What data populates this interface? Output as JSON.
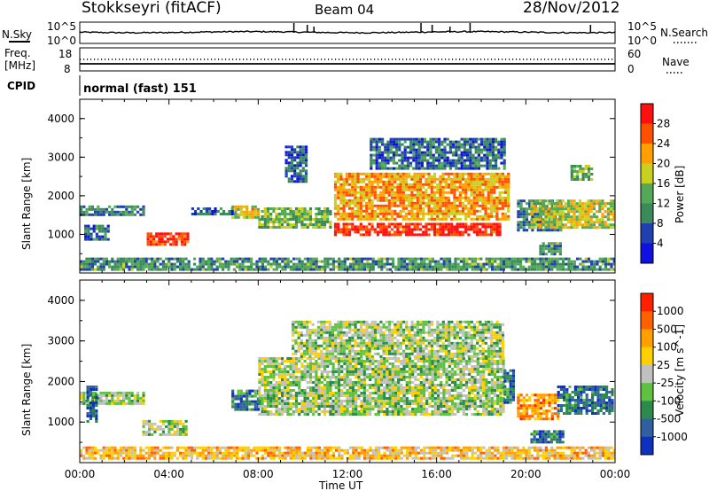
{
  "header": {
    "station": "Stokkseyri (fitACF)",
    "beam": "Beam 04",
    "date": "28/Nov/2012"
  },
  "noise_panel": {
    "left_label": "N.Sky",
    "right_label": "N.Search",
    "left_ticks": [
      "10^5",
      "10^0"
    ],
    "right_ticks": [
      "10^5",
      "10^0"
    ]
  },
  "freq_panel": {
    "left_label_1": "Freq.",
    "left_label_2": "[MHz]",
    "left_ticks": [
      "18",
      "8"
    ],
    "right_label": "Nave",
    "right_ticks": [
      "60",
      "0"
    ]
  },
  "cpid": {
    "label": "CPID",
    "value": "normal (fast) 151"
  },
  "time_axis": {
    "label": "Time UT",
    "ticks": [
      "00:00",
      "04:00",
      "08:00",
      "12:00",
      "16:00",
      "20:00",
      "00:00"
    ]
  },
  "colors": {
    "power_scale": [
      "#1010e0",
      "#2040b0",
      "#3a8a5a",
      "#55a858",
      "#c8d020",
      "#ffa000",
      "#ff5000",
      "#ff1010"
    ],
    "velocity_scale": [
      "#1030c0",
      "#3060a0",
      "#2c8a4c",
      "#60c040",
      "#c0c0c0",
      "#ffd000",
      "#ffa000",
      "#ff6000",
      "#ff2000"
    ]
  },
  "chart_data": [
    {
      "type": "heatmap",
      "quantity": "power",
      "xlabel": "Time UT",
      "ylabel": "Slant Range [km]",
      "xlim": [
        0,
        24
      ],
      "ylim": [
        0,
        4500
      ],
      "yticks": [
        "1000",
        "2000",
        "3000",
        "4000"
      ],
      "colorbar": {
        "label": "Power [dB]",
        "range": [
          0,
          32
        ],
        "ticks": [
          "4",
          "8",
          "12",
          "16",
          "20",
          "24",
          "28"
        ]
      },
      "regions": [
        {
          "t": [
            0.0,
            2.8
          ],
          "r": [
            1500,
            1750
          ],
          "level": 0.3
        },
        {
          "t": [
            0.2,
            1.3
          ],
          "r": [
            850,
            1250
          ],
          "level": 0.25
        },
        {
          "t": [
            3.0,
            4.8
          ],
          "r": [
            730,
            1050
          ],
          "level": 0.85
        },
        {
          "t": [
            5.0,
            7.0
          ],
          "r": [
            1500,
            1700
          ],
          "level": 0.25
        },
        {
          "t": [
            6.8,
            8.0
          ],
          "r": [
            1450,
            1750
          ],
          "level": 0.6
        },
        {
          "t": [
            8.0,
            11.2
          ],
          "r": [
            1200,
            1700
          ],
          "level": 0.45
        },
        {
          "t": [
            9.2,
            10.2
          ],
          "r": [
            2400,
            3300
          ],
          "level": 0.2
        },
        {
          "t": [
            11.4,
            18.9
          ],
          "r": [
            1000,
            1300
          ],
          "level": 0.92
        },
        {
          "t": [
            11.4,
            19.2
          ],
          "r": [
            1400,
            2600
          ],
          "level": 0.7
        },
        {
          "t": [
            13.0,
            19.0
          ],
          "r": [
            2700,
            3500
          ],
          "level": 0.25
        },
        {
          "t": [
            19.6,
            21.6
          ],
          "r": [
            1100,
            1900
          ],
          "level": 0.3
        },
        {
          "t": [
            20.2,
            24.0
          ],
          "r": [
            1200,
            1900
          ],
          "level": 0.55
        },
        {
          "t": [
            22.0,
            23.0
          ],
          "r": [
            2400,
            2800
          ],
          "level": 0.45
        },
        {
          "t": [
            20.6,
            21.6
          ],
          "r": [
            500,
            800
          ],
          "level": 0.35
        },
        {
          "t": [
            0.0,
            24.0
          ],
          "r": [
            100,
            400
          ],
          "level": 0.35
        }
      ]
    },
    {
      "type": "heatmap",
      "quantity": "velocity",
      "xlabel": "Time UT",
      "ylabel": "Slant Range [km]",
      "xlim": [
        0,
        24
      ],
      "ylim": [
        0,
        4500
      ],
      "yticks": [
        "1000",
        "2000",
        "3000",
        "4000"
      ],
      "colorbar": {
        "label": "Velocity [m s^-1]",
        "range": [
          -1200,
          1200
        ],
        "ticks": [
          "1000",
          "500",
          "100",
          "25",
          "-25",
          "-100",
          "-500",
          "-1000"
        ]
      },
      "regions": [
        {
          "t": [
            0.0,
            2.8
          ],
          "r": [
            1450,
            1750
          ],
          "level": 0.45
        },
        {
          "t": [
            0.3,
            0.7
          ],
          "r": [
            1000,
            1900
          ],
          "level": 0.15
        },
        {
          "t": [
            2.8,
            4.8
          ],
          "r": [
            700,
            1050
          ],
          "level": 0.45
        },
        {
          "t": [
            6.8,
            8.0
          ],
          "r": [
            1300,
            1800
          ],
          "level": 0.25
        },
        {
          "t": [
            8.0,
            19.0
          ],
          "r": [
            1200,
            2600
          ],
          "level": 0.45
        },
        {
          "t": [
            9.5,
            19.0
          ],
          "r": [
            2600,
            3500
          ],
          "level": 0.45
        },
        {
          "t": [
            19.0,
            19.4
          ],
          "r": [
            1500,
            2300
          ],
          "level": 0.2
        },
        {
          "t": [
            19.6,
            21.4
          ],
          "r": [
            1100,
            1700
          ],
          "level": 0.75
        },
        {
          "t": [
            21.4,
            23.9
          ],
          "r": [
            1200,
            1900
          ],
          "level": 0.2
        },
        {
          "t": [
            20.2,
            21.6
          ],
          "r": [
            500,
            800
          ],
          "level": 0.2
        },
        {
          "t": [
            0.0,
            24.0
          ],
          "r": [
            100,
            400
          ],
          "level": 0.65
        }
      ]
    }
  ]
}
